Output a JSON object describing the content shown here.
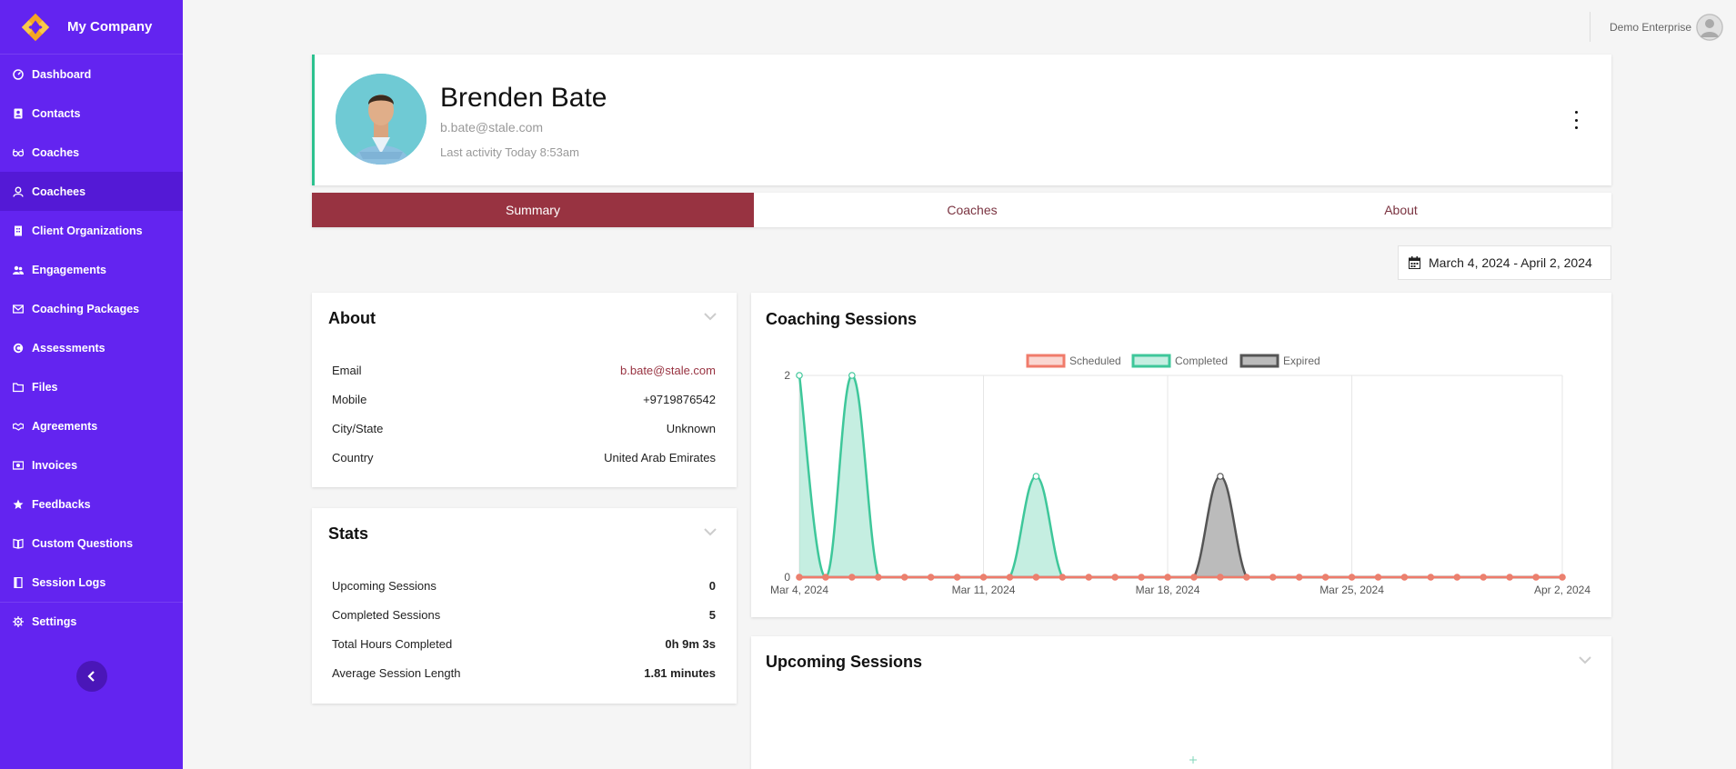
{
  "brand": {
    "name": "My Company"
  },
  "sidebar": {
    "items": [
      {
        "label": "Dashboard",
        "icon": "dashboard-icon"
      },
      {
        "label": "Contacts",
        "icon": "contacts-icon"
      },
      {
        "label": "Coaches",
        "icon": "glasses-icon"
      },
      {
        "label": "Coachees",
        "icon": "user-icon",
        "active": true
      },
      {
        "label": "Client Organizations",
        "icon": "building-icon"
      },
      {
        "label": "Engagements",
        "icon": "users-icon"
      },
      {
        "label": "Coaching Packages",
        "icon": "envelope-icon"
      },
      {
        "label": "Assessments",
        "icon": "assessment-icon"
      },
      {
        "label": "Files",
        "icon": "folder-icon"
      },
      {
        "label": "Agreements",
        "icon": "handshake-icon"
      },
      {
        "label": "Invoices",
        "icon": "invoice-icon"
      },
      {
        "label": "Feedbacks",
        "icon": "star-icon"
      },
      {
        "label": "Custom Questions",
        "icon": "book-icon"
      },
      {
        "label": "Session Logs",
        "icon": "log-icon"
      },
      {
        "label": "Settings",
        "icon": "gear-icon"
      }
    ]
  },
  "topbar": {
    "enterprise": "Demo Enterprise"
  },
  "profile": {
    "name": "Brenden Bate",
    "email": "b.bate@stale.com",
    "last_activity": "Last activity Today 8:53am"
  },
  "tabs": [
    {
      "label": "Summary",
      "active": true
    },
    {
      "label": "Coaches"
    },
    {
      "label": "About"
    }
  ],
  "date_range": "March 4, 2024 - April 2, 2024",
  "about": {
    "title": "About",
    "rows": [
      {
        "key": "Email",
        "value": "b.bate@stale.com"
      },
      {
        "key": "Mobile",
        "value": "+9719876542"
      },
      {
        "key": "City/State",
        "value": "Unknown"
      },
      {
        "key": "Country",
        "value": "United Arab Emirates"
      }
    ]
  },
  "stats": {
    "title": "Stats",
    "rows": [
      {
        "key": "Upcoming Sessions",
        "value": "0"
      },
      {
        "key": "Completed Sessions",
        "value": "5"
      },
      {
        "key": "Total Hours Completed",
        "value": "0h 9m 3s"
      },
      {
        "key": "Average Session Length",
        "value": "1.81 minutes"
      }
    ]
  },
  "upcoming": {
    "title": "Upcoming Sessions"
  },
  "colors": {
    "sidebar": "#6324f0",
    "accent": "#983341",
    "completed": "#3ec79a",
    "scheduled": "#f07b6b",
    "expired": "#555555"
  },
  "chart_data": {
    "type": "area",
    "title": "Coaching Sessions",
    "xlabel": "",
    "ylabel": "",
    "ylim": [
      0,
      2
    ],
    "legend_position": "top",
    "y_ticks": [
      0,
      2
    ],
    "x_tick_labels": [
      "Mar 4, 2024",
      "Mar 11, 2024",
      "Mar 18, 2024",
      "Mar 25, 2024",
      "Apr 2, 2024"
    ],
    "x": [
      "2024-03-04",
      "2024-03-05",
      "2024-03-06",
      "2024-03-07",
      "2024-03-08",
      "2024-03-09",
      "2024-03-10",
      "2024-03-11",
      "2024-03-12",
      "2024-03-13",
      "2024-03-14",
      "2024-03-15",
      "2024-03-16",
      "2024-03-17",
      "2024-03-18",
      "2024-03-19",
      "2024-03-20",
      "2024-03-21",
      "2024-03-22",
      "2024-03-23",
      "2024-03-24",
      "2024-03-25",
      "2024-03-26",
      "2024-03-27",
      "2024-03-28",
      "2024-03-29",
      "2024-03-30",
      "2024-03-31",
      "2024-04-01",
      "2024-04-02"
    ],
    "series": [
      {
        "name": "Scheduled",
        "color": "#f07b6b",
        "values": [
          0,
          0,
          0,
          0,
          0,
          0,
          0,
          0,
          0,
          0,
          0,
          0,
          0,
          0,
          0,
          0,
          0,
          0,
          0,
          0,
          0,
          0,
          0,
          0,
          0,
          0,
          0,
          0,
          0,
          0
        ]
      },
      {
        "name": "Completed",
        "color": "#3ec79a",
        "values": [
          2,
          0,
          2,
          0,
          0,
          0,
          0,
          0,
          0,
          1,
          0,
          0,
          0,
          0,
          0,
          0,
          0,
          0,
          0,
          0,
          0,
          0,
          0,
          0,
          0,
          0,
          0,
          0,
          0,
          0
        ]
      },
      {
        "name": "Expired",
        "color": "#555555",
        "values": [
          0,
          0,
          0,
          0,
          0,
          0,
          0,
          0,
          0,
          0,
          0,
          0,
          0,
          0,
          0,
          0,
          1,
          0,
          0,
          0,
          0,
          0,
          0,
          0,
          0,
          0,
          0,
          0,
          0,
          0
        ]
      }
    ]
  }
}
